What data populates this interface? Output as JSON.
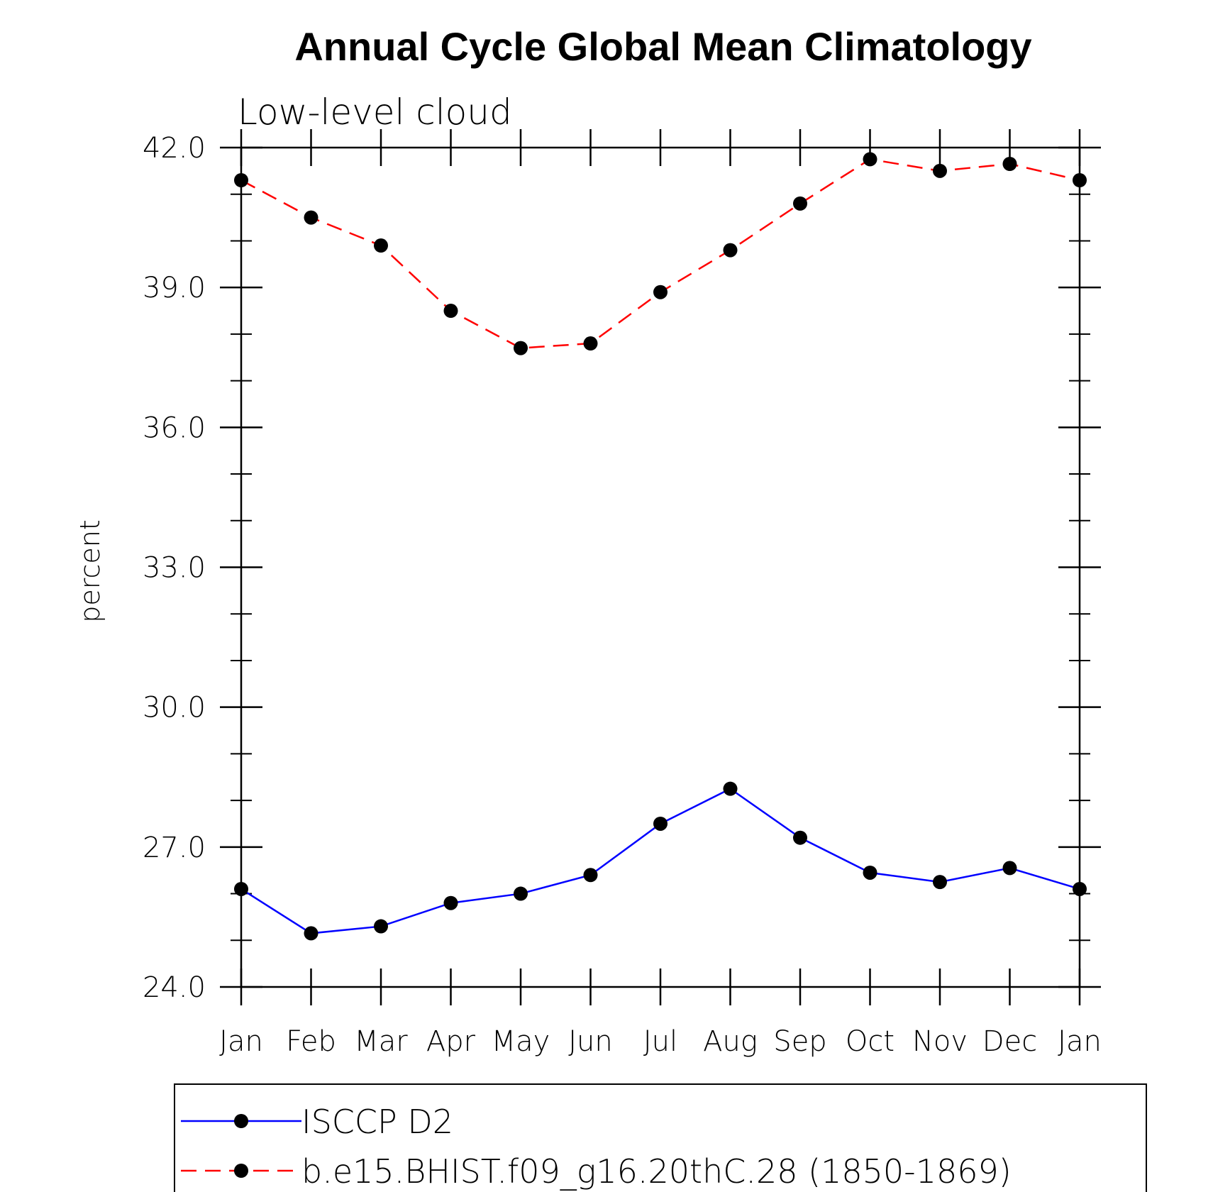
{
  "chart_data": {
    "type": "line",
    "title": "Annual Cycle Global Mean Climatology",
    "subtitle": "Low-level cloud",
    "xlabel": "",
    "ylabel": "percent",
    "categories": [
      "Jan",
      "Feb",
      "Mar",
      "Apr",
      "May",
      "Jun",
      "Jul",
      "Aug",
      "Sep",
      "Oct",
      "Nov",
      "Dec",
      "Jan"
    ],
    "ylim": [
      24.0,
      42.0
    ],
    "yticks": [
      "24.0",
      "27.0",
      "30.0",
      "33.0",
      "36.0",
      "39.0",
      "42.0"
    ],
    "grid": false,
    "legend_position": "bottom",
    "series": [
      {
        "name": "ISCCP D2",
        "color": "#0000ff",
        "dash": "solid",
        "marker": "circle",
        "values": [
          26.1,
          25.15,
          25.3,
          25.8,
          26.0,
          26.4,
          27.5,
          28.25,
          27.2,
          26.45,
          26.25,
          26.55,
          26.1
        ]
      },
      {
        "name": "b.e15.BHIST.f09_g16.20thC.28 (1850-1869)",
        "color": "#ff0000",
        "dash": "dashed",
        "marker": "circle",
        "values": [
          41.3,
          40.5,
          39.9,
          38.5,
          37.7,
          37.8,
          38.9,
          39.8,
          40.8,
          41.75,
          41.5,
          41.65,
          41.3
        ]
      }
    ]
  }
}
